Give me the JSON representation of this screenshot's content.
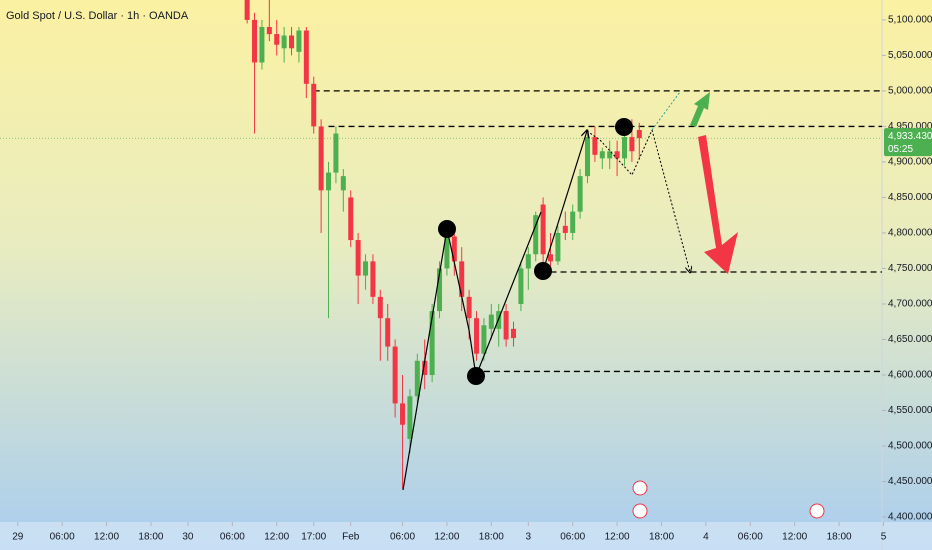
{
  "chart_data": {
    "type": "candlestick",
    "title": "Gold Spot / U.S. Dollar · 1h · OANDA",
    "x": [
      31,
      32,
      33,
      34,
      35,
      36,
      37,
      38,
      39,
      40,
      41,
      42,
      43,
      44,
      45,
      46,
      47,
      48,
      49,
      50,
      51,
      52,
      53,
      54,
      55,
      56,
      57,
      58,
      59,
      60,
      61,
      62,
      63,
      64,
      65,
      66,
      67,
      68,
      69,
      70,
      71,
      72,
      73,
      74,
      75,
      76,
      77,
      78,
      79,
      80,
      81,
      82,
      83,
      84
    ],
    "open": [
      5128,
      5100,
      5040,
      5090,
      5080,
      5060,
      5078,
      5055,
      5085,
      5010,
      4950,
      4860,
      4885,
      4860,
      4850,
      4790,
      4740,
      4760,
      4710,
      4680,
      4640,
      4560,
      4510,
      4570,
      4620,
      4600,
      4690,
      4750,
      4795,
      4760,
      4710,
      4680,
      4630,
      4665,
      4665,
      4690,
      4665,
      4700,
      4750,
      4770,
      4840,
      4770,
      4760,
      4810,
      4800,
      4830,
      4880,
      4935,
      4905,
      4905,
      4915,
      4905,
      4935,
      4945
    ],
    "high": [
      5135,
      5110,
      5100,
      5135,
      5100,
      5090,
      5090,
      5090,
      5090,
      5020,
      4960,
      4900,
      4950,
      4890,
      4860,
      4800,
      4770,
      4770,
      4720,
      4700,
      4650,
      4600,
      4580,
      4630,
      4650,
      4700,
      4760,
      4810,
      4810,
      4780,
      4720,
      4690,
      4680,
      4700,
      4700,
      4700,
      4675,
      4760,
      4780,
      4830,
      4850,
      4800,
      4810,
      4830,
      4840,
      4890,
      4945,
      4950,
      4920,
      4930,
      4930,
      4945,
      4960,
      4955
    ],
    "low": [
      5095,
      4940,
      5030,
      5070,
      5050,
      5040,
      5050,
      5040,
      4990,
      4940,
      4800,
      4680,
      4870,
      4830,
      4780,
      4700,
      4720,
      4700,
      4620,
      4620,
      4540,
      4440,
      4490,
      4560,
      4580,
      4590,
      4680,
      4740,
      4740,
      4690,
      4650,
      4620,
      4620,
      4650,
      4640,
      4640,
      4640,
      4690,
      4720,
      4760,
      4750,
      4750,
      4755,
      4790,
      4790,
      4820,
      4870,
      4900,
      4890,
      4890,
      4880,
      4895,
      4900,
      4905
    ],
    "close": [
      5100,
      5040,
      5090,
      5080,
      5065,
      5078,
      5060,
      5085,
      5010,
      4950,
      4860,
      4885,
      4940,
      4880,
      4790,
      4740,
      4760,
      4710,
      4680,
      4640,
      4560,
      4530,
      4570,
      4620,
      4600,
      4690,
      4750,
      4795,
      4760,
      4710,
      4680,
      4630,
      4670,
      4685,
      4690,
      4650,
      4652,
      4750,
      4770,
      4825,
      4770,
      4760,
      4800,
      4800,
      4830,
      4880,
      4935,
      4910,
      4915,
      4915,
      4905,
      4935,
      4915,
      4933.43
    ],
    "up_color": "#4caf50",
    "down_color": "#f23645",
    "xlim": [
      -2.4,
      116.8
    ],
    "xticks": [
      {
        "value": 0,
        "label": "29"
      },
      {
        "value": 6,
        "label": "06:00"
      },
      {
        "value": 12,
        "label": "12:00"
      },
      {
        "value": 18,
        "label": "18:00"
      },
      {
        "value": 23,
        "label": "30"
      },
      {
        "value": 29,
        "label": "06:00"
      },
      {
        "value": 35,
        "label": "12:00"
      },
      {
        "value": 40,
        "label": "17:00"
      },
      {
        "value": 45,
        "label": "Feb"
      },
      {
        "value": 52,
        "label": "06:00"
      },
      {
        "value": 58,
        "label": "12:00"
      },
      {
        "value": 64,
        "label": "18:00"
      },
      {
        "value": 69,
        "label": "3"
      },
      {
        "value": 75,
        "label": "06:00"
      },
      {
        "value": 81,
        "label": "12:00"
      },
      {
        "value": 87,
        "label": "18:00"
      },
      {
        "value": 93,
        "label": "4"
      },
      {
        "value": 99,
        "label": "06:00"
      },
      {
        "value": 105,
        "label": "12:00"
      },
      {
        "value": 111,
        "label": "18:00"
      },
      {
        "value": 117,
        "label": "5"
      }
    ],
    "ylim": [
      4393,
      5128
    ],
    "yticks": [
      {
        "value": 5100,
        "label": "5,100.000"
      },
      {
        "value": 5050,
        "label": "5,050.000"
      },
      {
        "value": 5000,
        "label": "5,000.000"
      },
      {
        "value": 4950,
        "label": "4,950.000"
      },
      {
        "value": 4900,
        "label": "4,900.000"
      },
      {
        "value": 4850,
        "label": "4,850.000"
      },
      {
        "value": 4800,
        "label": "4,800.000"
      },
      {
        "value": 4750,
        "label": "4,750.000"
      },
      {
        "value": 4700,
        "label": "4,700.000"
      },
      {
        "value": 4650,
        "label": "4,650.000"
      },
      {
        "value": 4600,
        "label": "4,600.000"
      },
      {
        "value": 4550,
        "label": "4,550.000"
      },
      {
        "value": 4500,
        "label": "4,500.000"
      },
      {
        "value": 4450,
        "label": "4,450.000"
      },
      {
        "value": 4400,
        "label": "4,400.000"
      }
    ],
    "levels": [
      {
        "price": 5000,
        "from_x": 40
      },
      {
        "price": 4950,
        "from_x": 42
      },
      {
        "price": 4745,
        "from_x": 72
      },
      {
        "price": 4605,
        "from_x": 63
      }
    ],
    "last_price": {
      "value": 4933.43,
      "label": "4,933.430"
    },
    "countdown": "05:25"
  }
}
